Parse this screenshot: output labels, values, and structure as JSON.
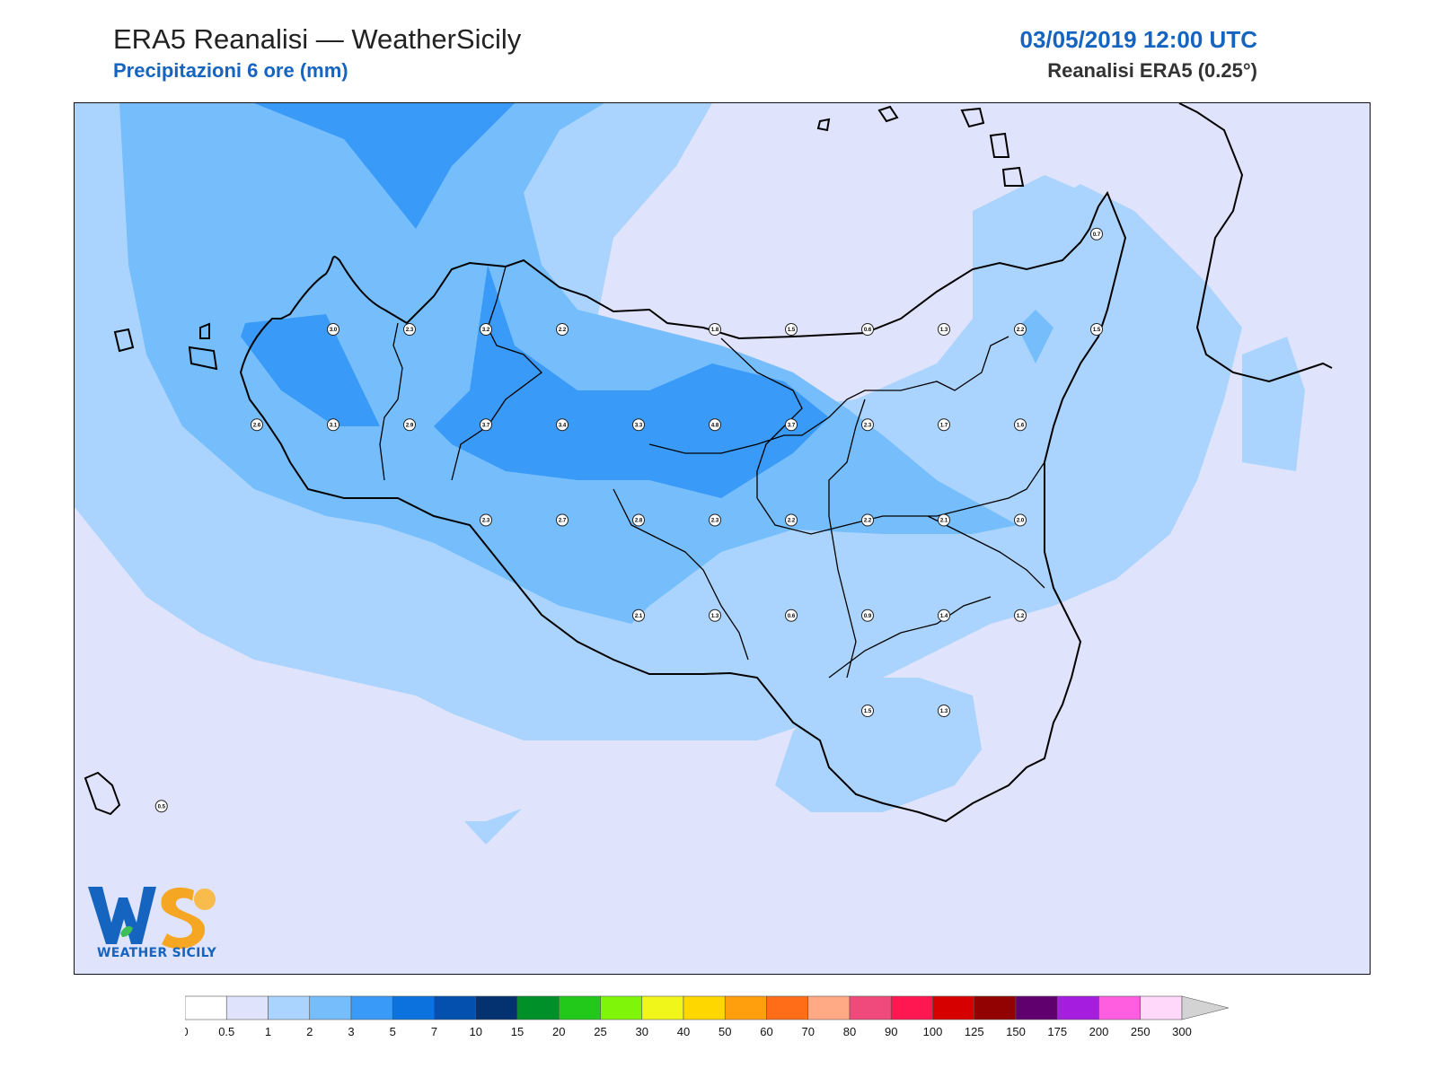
{
  "header": {
    "title": "ERA5 Reanalisi — WeatherSicily",
    "subtitle": "Precipitazioni 6 ore (mm)",
    "datetime": "03/05/2019 12:00 UTC",
    "model": "Reanalisi ERA5 (0.25°)"
  },
  "logo": {
    "text": "WEATHER SICILY",
    "icon": "ws-logo-icon"
  },
  "colors": {
    "lev_0_5": "#dfe3fb",
    "lev_1": "#aad4fd",
    "lev_2": "#75befb",
    "lev_3": "#3a9af7",
    "sea_none": "#ffffff",
    "coast": "#000000"
  },
  "legend": {
    "ticks": [
      "0",
      "0.5",
      "1",
      "2",
      "3",
      "5",
      "7",
      "10",
      "15",
      "20",
      "25",
      "30",
      "40",
      "50",
      "60",
      "70",
      "80",
      "90",
      "100",
      "125",
      "150",
      "175",
      "200",
      "250",
      "300"
    ],
    "colors": [
      "#ffffff",
      "#dfe3fb",
      "#aad4fd",
      "#75befb",
      "#3a9af7",
      "#0b72de",
      "#0450ae",
      "#04316f",
      "#00902a",
      "#22c91b",
      "#7ff50a",
      "#f0f51a",
      "#ffd700",
      "#ff9f0e",
      "#ff6d19",
      "#ffaa85",
      "#f04a7c",
      "#ff1752",
      "#d60000",
      "#920202",
      "#60006f",
      "#a51ee0",
      "#ff5ee0",
      "#ffd8fa"
    ]
  },
  "stations": [
    {
      "label": "3.0",
      "x": 12.4,
      "y": 13.4
    },
    {
      "label": "2.3",
      "x": 12.6,
      "y": 13.4
    },
    {
      "label": "3.2",
      "x": 12.8,
      "y": 13.4
    },
    {
      "label": "2.2",
      "x": 13.0,
      "y": 13.4
    },
    {
      "label": "1.8",
      "x": 13.4,
      "y": 13.4
    },
    {
      "label": "1.5",
      "x": 13.6,
      "y": 13.4
    },
    {
      "label": "0.6",
      "x": 13.8,
      "y": 13.4
    },
    {
      "label": "1.3",
      "x": 14.0,
      "y": 13.4
    },
    {
      "label": "2.2",
      "x": 14.2,
      "y": 13.4
    },
    {
      "label": "1.5",
      "x": 14.4,
      "y": 13.4
    },
    {
      "label": "0.7",
      "x": 14.4,
      "y": 13.65
    },
    {
      "label": "2.6",
      "x": 12.2,
      "y": 13.15
    },
    {
      "label": "3.1",
      "x": 12.4,
      "y": 13.15
    },
    {
      "label": "2.9",
      "x": 12.6,
      "y": 13.15
    },
    {
      "label": "3.7",
      "x": 12.8,
      "y": 13.15
    },
    {
      "label": "3.4",
      "x": 13.0,
      "y": 13.15
    },
    {
      "label": "3.3",
      "x": 13.2,
      "y": 13.15
    },
    {
      "label": "4.8",
      "x": 13.4,
      "y": 13.15
    },
    {
      "label": "3.7",
      "x": 13.6,
      "y": 13.15
    },
    {
      "label": "2.3",
      "x": 13.8,
      "y": 13.15
    },
    {
      "label": "1.7",
      "x": 14.0,
      "y": 13.15
    },
    {
      "label": "1.6",
      "x": 14.2,
      "y": 13.15
    },
    {
      "label": "2.3",
      "x": 12.8,
      "y": 12.9
    },
    {
      "label": "2.7",
      "x": 13.0,
      "y": 12.9
    },
    {
      "label": "2.8",
      "x": 13.2,
      "y": 12.9
    },
    {
      "label": "2.3",
      "x": 13.4,
      "y": 12.9
    },
    {
      "label": "2.2",
      "x": 13.6,
      "y": 12.9
    },
    {
      "label": "2.2",
      "x": 13.8,
      "y": 12.9
    },
    {
      "label": "2.1",
      "x": 14.0,
      "y": 12.9
    },
    {
      "label": "2.0",
      "x": 14.2,
      "y": 12.9
    },
    {
      "label": "2.1",
      "x": 13.2,
      "y": 12.65
    },
    {
      "label": "1.3",
      "x": 13.4,
      "y": 12.65
    },
    {
      "label": "0.6",
      "x": 13.6,
      "y": 12.65
    },
    {
      "label": "0.9",
      "x": 13.8,
      "y": 12.65
    },
    {
      "label": "1.4",
      "x": 14.0,
      "y": 12.65
    },
    {
      "label": "1.2",
      "x": 14.2,
      "y": 12.65
    },
    {
      "label": "1.5",
      "x": 13.8,
      "y": 12.4
    },
    {
      "label": "1.3",
      "x": 14.0,
      "y": 12.4
    },
    {
      "label": "0.5",
      "x": 11.95,
      "y": 12.15
    }
  ]
}
